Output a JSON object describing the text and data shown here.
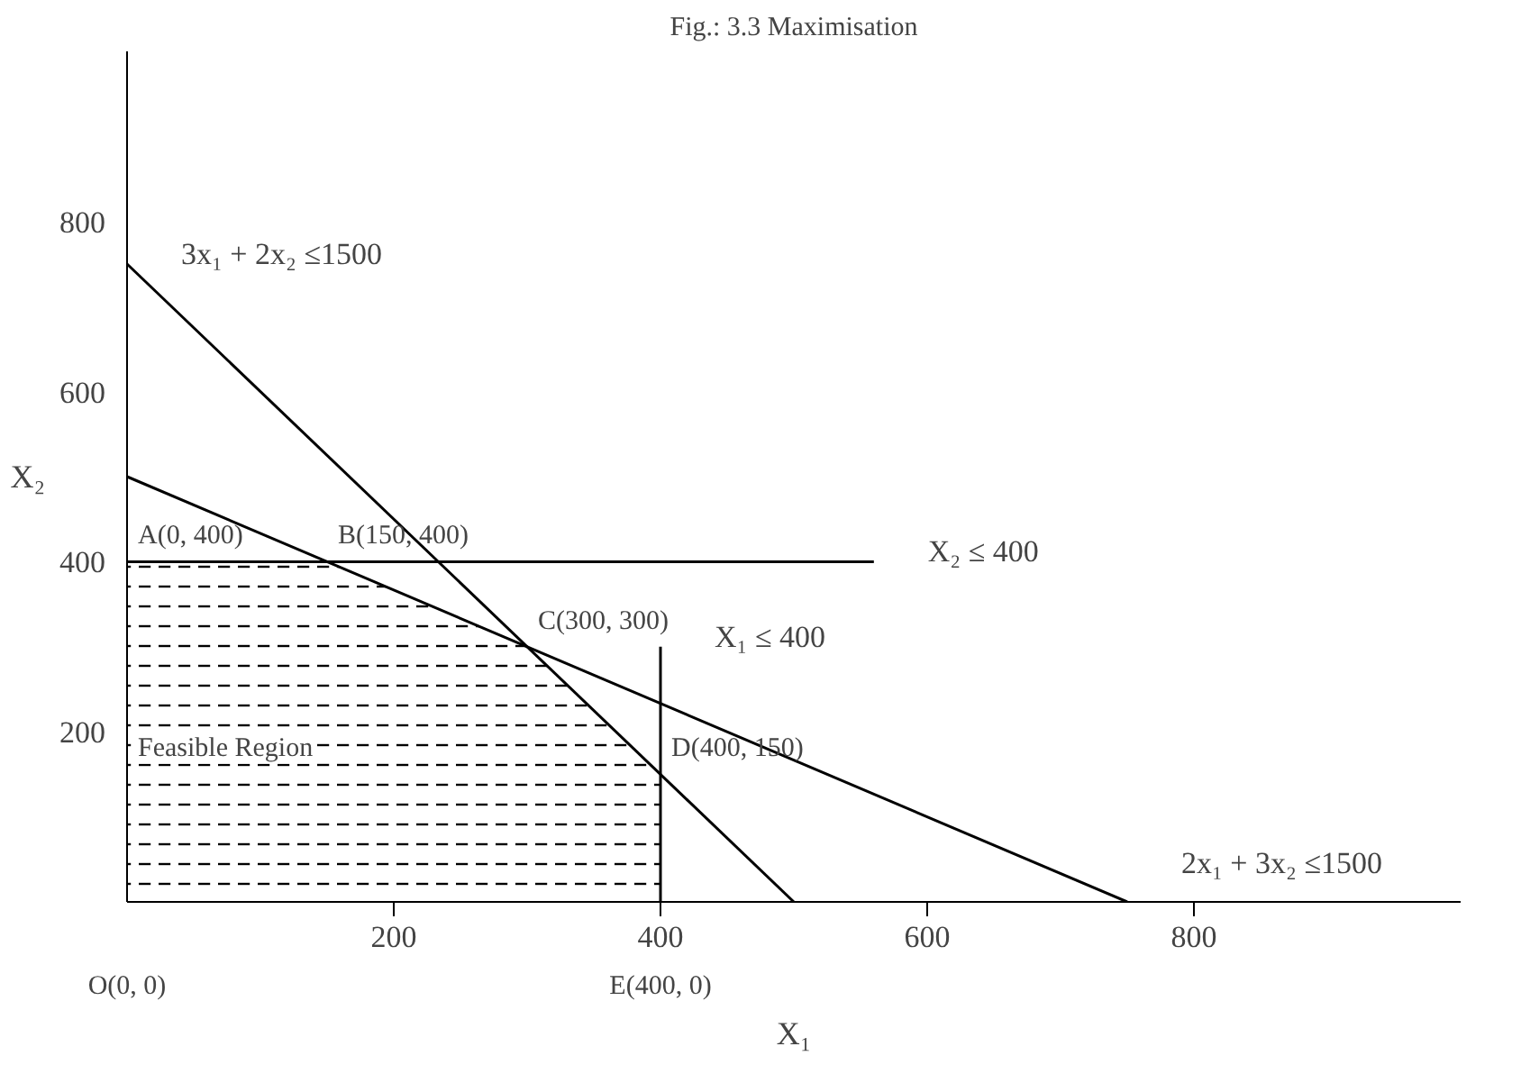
{
  "chart_data": {
    "type": "line",
    "title": "Fig.: 3.3 Maximisation",
    "xlabel": "X₁",
    "ylabel": "X₂",
    "xlim": [
      0,
      1000
    ],
    "ylim": [
      0,
      1000
    ],
    "xticks": [
      200,
      400,
      600,
      800
    ],
    "yticks": [
      200,
      400,
      600,
      800
    ],
    "grid": false,
    "marker": "none",
    "line_style": "solid",
    "series": [
      {
        "type": "area",
        "color": "#000000",
        "x": [
          0,
          150,
          300,
          400,
          400
        ],
        "values": [
          400,
          400,
          300,
          150,
          0
        ]
      },
      {
        "name": "3x₁ + 2x₂ ≤1500",
        "color": "#000000",
        "x": [
          500,
          0
        ],
        "values": [
          0,
          750
        ]
      },
      {
        "name": "2x₁ + 3x₂ ≤1500",
        "color": "#000000",
        "x": [
          0,
          750
        ],
        "values": [
          500,
          0
        ]
      },
      {
        "name": "X₂ ≤ 400",
        "color": "#000000",
        "x": [
          0,
          560
        ],
        "values": [
          400,
          400
        ]
      },
      {
        "name": "X₁ ≤ 400",
        "color": "#000000",
        "x": [
          400,
          400
        ],
        "values": [
          0,
          300
        ]
      }
    ],
    "annotations": [
      {
        "text": "A(0, 400)",
        "x": 0,
        "y": 400
      },
      {
        "text": "B(150, 400)",
        "x": 150,
        "y": 400
      },
      {
        "text": "C(300, 300)",
        "x": 300,
        "y": 300
      },
      {
        "text": "D(400, 150)",
        "x": 400,
        "y": 150
      },
      {
        "text": "Feasible Region",
        "x": 0,
        "y": 150
      },
      {
        "text": "O(0, 0)",
        "x": 0,
        "y": 0
      },
      {
        "text": "E(400, 0)",
        "x": 400,
        "y": 0
      }
    ]
  }
}
